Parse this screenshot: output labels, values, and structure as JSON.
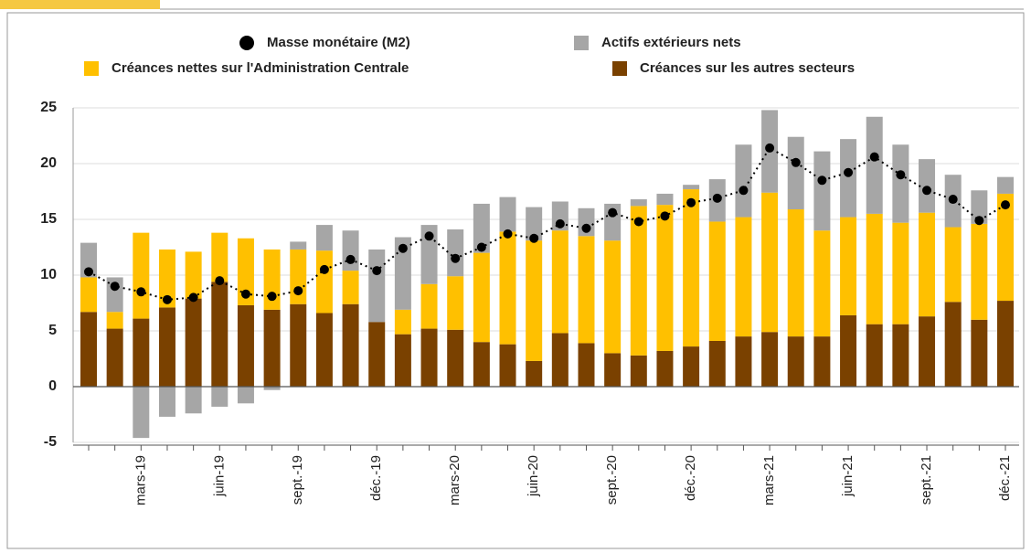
{
  "chart_data": {
    "type": "bar",
    "categories": [
      null,
      null,
      "mars-19",
      null,
      null,
      "juin-19",
      null,
      null,
      "sept.-19",
      null,
      null,
      "déc.-19",
      null,
      null,
      "mars-20",
      null,
      null,
      "juin-20",
      null,
      null,
      "sept.-20",
      null,
      null,
      "déc.-20",
      null,
      null,
      "mars-21",
      null,
      null,
      "juin-21",
      null,
      null,
      "sept.-21",
      null,
      null,
      "déc.-21"
    ],
    "series": [
      {
        "name": "Créances sur les autres secteurs",
        "color": "#7a4100",
        "kind": "bar",
        "values": [
          6.7,
          5.2,
          6.1,
          7.1,
          7.9,
          9.4,
          7.3,
          6.9,
          7.4,
          6.6,
          7.4,
          5.8,
          4.7,
          5.2,
          5.1,
          4.0,
          3.8,
          2.3,
          4.8,
          3.9,
          3.0,
          2.8,
          3.2,
          3.6,
          4.1,
          4.5,
          4.9,
          4.5,
          4.5,
          6.4,
          5.6,
          5.6,
          6.3,
          7.6,
          6.0,
          7.7
        ]
      },
      {
        "name": "Créances nettes sur l'Administration Centrale",
        "color": "#ffc000",
        "kind": "bar",
        "values": [
          3.1,
          1.5,
          7.7,
          5.2,
          4.2,
          4.4,
          6.0,
          5.4,
          4.9,
          5.6,
          3.0,
          0,
          2.2,
          4.0,
          4.8,
          8.0,
          10.1,
          10.8,
          9.2,
          9.6,
          10.1,
          13.4,
          13.1,
          14.1,
          10.7,
          10.7,
          12.5,
          11.4,
          9.5,
          8.8,
          9.9,
          9.1,
          9.3,
          6.7,
          8.6,
          9.6
        ]
      },
      {
        "name": "Actifs extérieurs nets",
        "color": "#a6a6a6",
        "kind": "bar",
        "values": [
          3.1,
          3.1,
          -4.6,
          -2.7,
          -2.4,
          -1.8,
          -1.5,
          -0.3,
          0.7,
          2.3,
          3.6,
          6.5,
          6.5,
          5.3,
          4.2,
          4.4,
          3.1,
          3.0,
          2.6,
          2.5,
          3.3,
          0.6,
          1.0,
          0.4,
          3.8,
          6.5,
          7.4,
          6.5,
          7.1,
          7.0,
          8.7,
          7.0,
          4.8,
          4.7,
          3.0,
          1.5
        ]
      },
      {
        "name": "Masse monétaire (M2)",
        "color": "#000000",
        "kind": "line",
        "values": [
          10.3,
          9.0,
          8.5,
          7.8,
          8.0,
          9.5,
          8.3,
          8.1,
          8.6,
          10.5,
          11.4,
          10.4,
          12.4,
          13.5,
          11.5,
          12.5,
          13.7,
          13.3,
          14.6,
          14.2,
          15.6,
          14.8,
          15.3,
          16.5,
          16.9,
          17.6,
          21.4,
          20.1,
          18.5,
          19.2,
          20.6,
          19.0,
          17.6,
          16.8,
          14.9,
          16.3
        ]
      }
    ],
    "ylim": [
      -5,
      25
    ],
    "yticks": [
      -5,
      0,
      5,
      10,
      15,
      20,
      25
    ],
    "grid": true
  }
}
